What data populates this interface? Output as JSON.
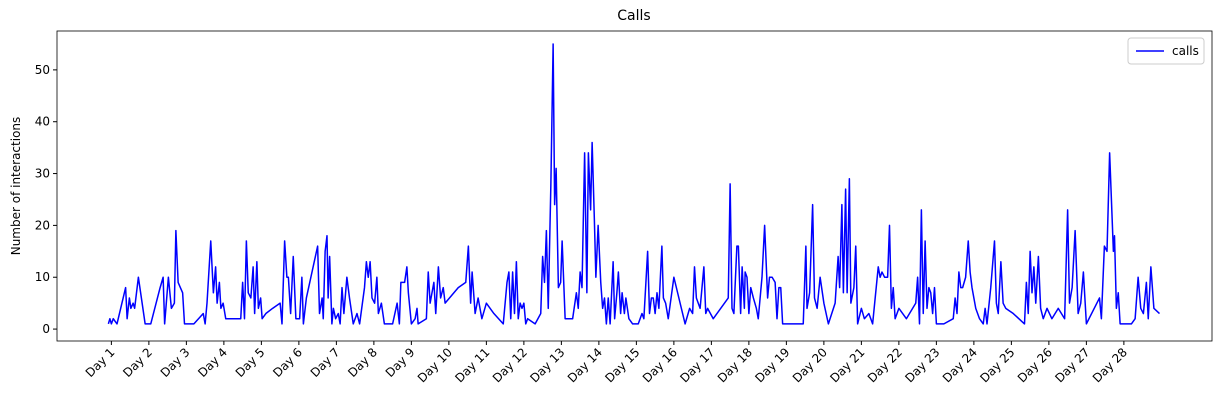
{
  "chart_data": {
    "type": "line",
    "title": "Calls",
    "ylabel": "Number of interactions",
    "x": [
      0.92,
      0.96,
      1.0,
      1.05,
      1.15,
      1.38,
      1.42,
      1.48,
      1.52,
      1.58,
      1.62,
      1.72,
      1.82,
      1.9,
      2.05,
      2.3,
      2.38,
      2.42,
      2.52,
      2.6,
      2.68,
      2.72,
      2.78,
      2.9,
      2.95,
      3.2,
      3.45,
      3.5,
      3.55,
      3.65,
      3.72,
      3.78,
      3.82,
      3.88,
      3.92,
      3.98,
      4.05,
      4.45,
      4.5,
      4.55,
      4.6,
      4.65,
      4.72,
      4.78,
      4.82,
      4.88,
      4.92,
      4.98,
      5.02,
      5.12,
      5.3,
      5.5,
      5.55,
      5.62,
      5.68,
      5.72,
      5.78,
      5.85,
      5.92,
      6.02,
      6.08,
      6.12,
      6.2,
      6.5,
      6.55,
      6.62,
      6.65,
      6.7,
      6.75,
      6.78,
      6.82,
      6.88,
      6.92,
      6.98,
      7.05,
      7.1,
      7.15,
      7.2,
      7.28,
      7.35,
      7.45,
      7.55,
      7.62,
      7.75,
      7.8,
      7.85,
      7.9,
      7.95,
      8.02,
      8.08,
      8.12,
      8.2,
      8.28,
      8.5,
      8.62,
      8.68,
      8.72,
      8.82,
      8.88,
      8.92,
      9.0,
      9.1,
      9.15,
      9.18,
      9.4,
      9.45,
      9.5,
      9.6,
      9.65,
      9.72,
      9.78,
      9.85,
      9.9,
      10.25,
      10.45,
      10.52,
      10.58,
      10.62,
      10.7,
      10.78,
      10.88,
      11.0,
      11.2,
      11.45,
      11.55,
      11.6,
      11.65,
      11.7,
      11.75,
      11.8,
      11.85,
      11.9,
      11.95,
      12.0,
      12.05,
      12.1,
      12.3,
      12.45,
      12.5,
      12.55,
      12.6,
      12.65,
      12.72,
      12.78,
      12.82,
      12.86,
      12.92,
      12.98,
      13.02,
      13.1,
      13.3,
      13.4,
      13.45,
      13.5,
      13.55,
      13.62,
      13.68,
      13.72,
      13.78,
      13.82,
      13.88,
      13.92,
      13.98,
      14.05,
      14.1,
      14.15,
      14.2,
      14.25,
      14.3,
      14.38,
      14.42,
      14.48,
      14.52,
      14.58,
      14.62,
      14.68,
      14.72,
      14.8,
      14.9,
      15.05,
      15.15,
      15.2,
      15.3,
      15.35,
      15.4,
      15.45,
      15.5,
      15.55,
      15.6,
      15.68,
      15.72,
      15.78,
      15.85,
      16.0,
      16.3,
      16.42,
      16.5,
      16.55,
      16.6,
      16.7,
      16.8,
      16.85,
      16.9,
      17.05,
      17.45,
      17.5,
      17.55,
      17.6,
      17.68,
      17.72,
      17.78,
      17.82,
      17.88,
      17.9,
      17.95,
      18.0,
      18.05,
      18.12,
      18.2,
      18.25,
      18.35,
      18.42,
      18.5,
      18.55,
      18.62,
      18.7,
      18.75,
      18.8,
      18.85,
      18.9,
      19.3,
      19.45,
      19.52,
      19.55,
      19.62,
      19.7,
      19.75,
      19.82,
      19.9,
      20.0,
      20.12,
      20.3,
      20.38,
      20.42,
      20.48,
      20.52,
      20.58,
      20.62,
      20.68,
      20.72,
      20.8,
      20.85,
      20.9,
      21.0,
      21.08,
      21.2,
      21.3,
      21.45,
      21.5,
      21.55,
      21.62,
      21.7,
      21.75,
      21.8,
      21.85,
      21.9,
      22.0,
      22.2,
      22.45,
      22.5,
      22.55,
      22.6,
      22.65,
      22.7,
      22.75,
      22.8,
      22.85,
      22.9,
      22.95,
      23.0,
      23.2,
      23.45,
      23.5,
      23.55,
      23.6,
      23.65,
      23.7,
      23.78,
      23.85,
      23.9,
      23.95,
      24.05,
      24.15,
      24.25,
      24.3,
      24.35,
      24.45,
      24.55,
      24.6,
      24.65,
      24.72,
      24.78,
      24.85,
      25.05,
      25.35,
      25.4,
      25.45,
      25.5,
      25.55,
      25.6,
      25.65,
      25.72,
      25.78,
      25.85,
      25.95,
      26.08,
      26.25,
      26.42,
      26.5,
      26.55,
      26.62,
      26.7,
      26.78,
      26.85,
      26.92,
      27.0,
      27.35,
      27.4,
      27.48,
      27.55,
      27.62,
      27.72,
      27.75,
      27.8,
      27.85,
      27.9,
      28.2,
      28.3,
      28.38,
      28.45,
      28.52,
      28.6,
      28.65,
      28.72,
      28.8,
      28.95
    ],
    "series": [
      {
        "name": "calls",
        "color": "#0000ff",
        "values": [
          1,
          2,
          1,
          2,
          1,
          8,
          2,
          6,
          4,
          5,
          4,
          10,
          5,
          1,
          1,
          8,
          10,
          1,
          10,
          4,
          5,
          19,
          9,
          7,
          1,
          1,
          3,
          1,
          5,
          17,
          7,
          12,
          5,
          9,
          4,
          5,
          2,
          2,
          9,
          2,
          17,
          7,
          6,
          12,
          3,
          13,
          4,
          6,
          2,
          3,
          4,
          5,
          1,
          17,
          10,
          10,
          3,
          14,
          2,
          2,
          10,
          1,
          6,
          16,
          3,
          6,
          2,
          15,
          18,
          6,
          14,
          1,
          4,
          2,
          3,
          1,
          8,
          3,
          10,
          6,
          1,
          3,
          1,
          8,
          13,
          10,
          13,
          6,
          5,
          10,
          3,
          5,
          1,
          1,
          5,
          1,
          9,
          9,
          12,
          7,
          1,
          2,
          4,
          1,
          2,
          11,
          5,
          9,
          3,
          12,
          6,
          8,
          5,
          8,
          9,
          16,
          5,
          11,
          3,
          6,
          2,
          5,
          3,
          1,
          9,
          11,
          2,
          11,
          3,
          13,
          2,
          5,
          4,
          5,
          1,
          2,
          1,
          3,
          14,
          9,
          19,
          4,
          28,
          55,
          24,
          31,
          8,
          9,
          17,
          2,
          2,
          7,
          4,
          11,
          8,
          34,
          7,
          34,
          23,
          36,
          21,
          10,
          20,
          9,
          4,
          6,
          1,
          6,
          1,
          13,
          2,
          7,
          11,
          3,
          7,
          3,
          6,
          2,
          1,
          1,
          3,
          2,
          15,
          3,
          6,
          6,
          3,
          7,
          4,
          16,
          6,
          5,
          2,
          10,
          1,
          4,
          3,
          12,
          6,
          4,
          12,
          3,
          4,
          2,
          6,
          28,
          4,
          3,
          16,
          16,
          3,
          12,
          4,
          11,
          10,
          3,
          8,
          6,
          4,
          2,
          10,
          20,
          6,
          10,
          10,
          9,
          2,
          8,
          8,
          1,
          1,
          1,
          16,
          4,
          7,
          24,
          6,
          4,
          10,
          5,
          1,
          5,
          14,
          8,
          24,
          7,
          27,
          7,
          29,
          5,
          8,
          16,
          1,
          4,
          2,
          3,
          1,
          12,
          10,
          11,
          10,
          10,
          20,
          4,
          8,
          2,
          4,
          2,
          5,
          10,
          1,
          23,
          3,
          17,
          4,
          8,
          7,
          3,
          8,
          1,
          1,
          2,
          6,
          3,
          11,
          8,
          8,
          10,
          17,
          11,
          8,
          4,
          2,
          1,
          4,
          1,
          8,
          17,
          5,
          3,
          13,
          5,
          4,
          3,
          1,
          9,
          3,
          15,
          7,
          12,
          5,
          14,
          4,
          2,
          4,
          2,
          4,
          2,
          23,
          5,
          8,
          19,
          3,
          5,
          11,
          1,
          6,
          2,
          16,
          15,
          34,
          15,
          18,
          4,
          7,
          1,
          1,
          2,
          10,
          4,
          3,
          9,
          2,
          12,
          4,
          3
        ]
      }
    ],
    "xlim": [
      -0.45,
      30.35
    ],
    "ylim": [
      -2.3,
      57.5
    ],
    "xticks": [
      {
        "value": 1,
        "label": "Day 1"
      },
      {
        "value": 2,
        "label": "Day 2"
      },
      {
        "value": 3,
        "label": "Day 3"
      },
      {
        "value": 4,
        "label": "Day 4"
      },
      {
        "value": 5,
        "label": "Day 5"
      },
      {
        "value": 6,
        "label": "Day 6"
      },
      {
        "value": 7,
        "label": "Day 7"
      },
      {
        "value": 8,
        "label": "Day 8"
      },
      {
        "value": 9,
        "label": "Day 9"
      },
      {
        "value": 10,
        "label": "Day 10"
      },
      {
        "value": 11,
        "label": "Day 11"
      },
      {
        "value": 12,
        "label": "Day 12"
      },
      {
        "value": 13,
        "label": "Day 13"
      },
      {
        "value": 14,
        "label": "Day 14"
      },
      {
        "value": 15,
        "label": "Day 15"
      },
      {
        "value": 16,
        "label": "Day 16"
      },
      {
        "value": 17,
        "label": "Day 17"
      },
      {
        "value": 18,
        "label": "Day 18"
      },
      {
        "value": 19,
        "label": "Day 19"
      },
      {
        "value": 20,
        "label": "Day 20"
      },
      {
        "value": 21,
        "label": "Day 21"
      },
      {
        "value": 22,
        "label": "Day 22"
      },
      {
        "value": 23,
        "label": "Day 23"
      },
      {
        "value": 24,
        "label": "Day 24"
      },
      {
        "value": 25,
        "label": "Day 25"
      },
      {
        "value": 26,
        "label": "Day 26"
      },
      {
        "value": 27,
        "label": "Day 27"
      },
      {
        "value": 28,
        "label": "Day 28"
      }
    ],
    "yticks": [
      0,
      10,
      20,
      30,
      40,
      50
    ],
    "legend": "upper right",
    "grid": false
  }
}
